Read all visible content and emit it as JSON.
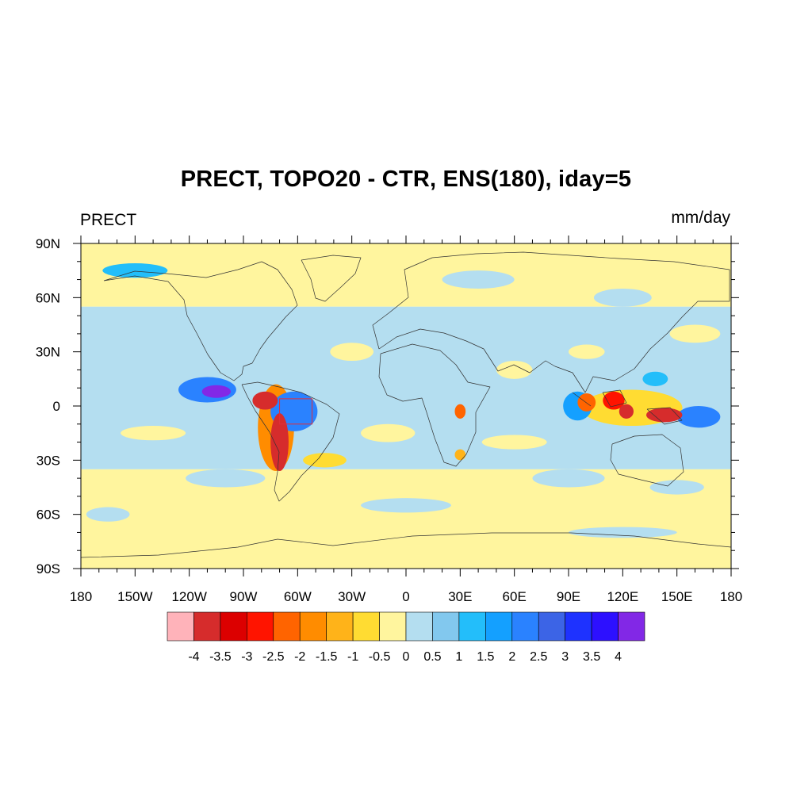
{
  "title": "PRECT, TOPO20 - CTR, ENS(180), iday=5",
  "left_string": "PRECT",
  "right_string": "mm/day",
  "map": {
    "projection": "cylindrical equidistant",
    "lon_range": [
      -180,
      180
    ],
    "lat_range": [
      -90,
      90
    ],
    "lon_tick_labels": [
      "180",
      "150W",
      "120W",
      "90W",
      "60W",
      "30W",
      "0",
      "30E",
      "60E",
      "90E",
      "120E",
      "150E",
      "180"
    ],
    "lat_tick_labels": [
      "90N",
      "60N",
      "30N",
      "0",
      "30S",
      "60S",
      "90S"
    ],
    "highlight_box": {
      "lon_range": [
        -70,
        -52
      ],
      "lat_range": [
        -10,
        4
      ],
      "color": "#e0303a"
    },
    "background_regions": [
      {
        "name": "northern high latitudes",
        "lon_range": [
          -180,
          180
        ],
        "lat_range": [
          55,
          90
        ],
        "level": -0.25
      },
      {
        "name": "southern ocean",
        "lon_range": [
          -180,
          180
        ],
        "lat_range": [
          -90,
          -35
        ],
        "level": -0.25
      },
      {
        "name": "tropics and subtropics",
        "lon_range": [
          -180,
          180
        ],
        "lat_range": [
          -35,
          55
        ],
        "level": 0.25
      }
    ],
    "anomaly_features": [
      {
        "name": "eastern tropical pacific max",
        "lon": -105,
        "lat": 8,
        "rx": 8,
        "ry": 3.5,
        "level": 4
      },
      {
        "name": "eastern tropical pacific ring",
        "lon": -110,
        "lat": 9,
        "rx": 16,
        "ry": 7,
        "level": 2
      },
      {
        "name": "andes north deficit",
        "lon": -78,
        "lat": 3,
        "rx": 7,
        "ry": 5,
        "level": -4
      },
      {
        "name": "andes central deficit",
        "lon": -70,
        "lat": -20,
        "rx": 5,
        "ry": 16,
        "level": -4
      },
      {
        "name": "andes deficit halo",
        "lon": -72,
        "lat": -12,
        "rx": 10,
        "ry": 24,
        "level": -2
      },
      {
        "name": "amazon positive",
        "lon": -62,
        "lat": -3,
        "rx": 13,
        "ry": 11,
        "level": 2
      },
      {
        "name": "south atlantic convergence",
        "lon": -45,
        "lat": -30,
        "rx": 12,
        "ry": 4,
        "level": -1
      },
      {
        "name": "east africa deficit",
        "lon": 30,
        "lat": -3,
        "rx": 3,
        "ry": 4,
        "level": -2.5
      },
      {
        "name": "madagascar deficit",
        "lon": 30,
        "lat": -27,
        "rx": 3,
        "ry": 3,
        "level": -1.5
      },
      {
        "name": "sumatra deficit",
        "lon": 100,
        "lat": 2,
        "rx": 5,
        "ry": 5,
        "level": -2.5
      },
      {
        "name": "borneo deficit",
        "lon": 115,
        "lat": 3,
        "rx": 6,
        "ry": 5,
        "level": -3
      },
      {
        "name": "sulawesi deficit",
        "lon": 122,
        "lat": -3,
        "rx": 4,
        "ry": 4,
        "level": -4
      },
      {
        "name": "new guinea deficit",
        "lon": 143,
        "lat": -5,
        "rx": 10,
        "ry": 4,
        "level": -4
      },
      {
        "name": "maritime continent halo",
        "lon": 125,
        "lat": -1,
        "rx": 28,
        "ry": 10,
        "level": -1
      },
      {
        "name": "western pacific positive",
        "lon": 162,
        "lat": -6,
        "rx": 12,
        "ry": 6,
        "level": 2
      },
      {
        "name": "indian ocean positive",
        "lon": 95,
        "lat": 0,
        "rx": 8,
        "ry": 8,
        "level": 1.5
      },
      {
        "name": "philippine sea positive",
        "lon": 138,
        "lat": 15,
        "rx": 7,
        "ry": 4,
        "level": 1
      }
    ]
  },
  "colorbar": {
    "labels": [
      "-4",
      "-3.5",
      "-3",
      "-2.5",
      "-2",
      "-1.5",
      "-1",
      "-0.5",
      "0",
      "0.5",
      "1",
      "1.5",
      "2",
      "2.5",
      "3",
      "3.5",
      "4"
    ],
    "colors": [
      "#ffb3ba",
      "#d62c2c",
      "#dc0000",
      "#ff1400",
      "#ff6400",
      "#ff8c00",
      "#ffb319",
      "#ffdc32",
      "#fff59e",
      "#b4def0",
      "#82c8ee",
      "#23befa",
      "#14a0ff",
      "#2a82ff",
      "#3c64e6",
      "#1e32ff",
      "#2d10ff",
      "#8228e6"
    ]
  }
}
